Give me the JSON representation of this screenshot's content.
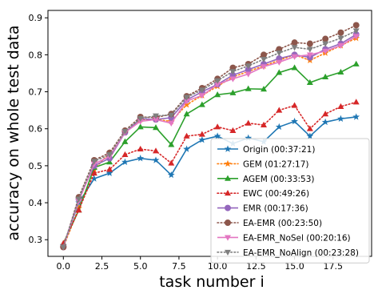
{
  "chart_data": {
    "type": "line",
    "title": "",
    "xlabel": "task number i",
    "ylabel": "accuracy on whole test data",
    "xlim": [
      -1.0,
      20.0
    ],
    "ylim": [
      0.255,
      0.92
    ],
    "xticks": [
      0.0,
      2.5,
      5.0,
      7.5,
      10.0,
      12.5,
      15.0,
      17.5
    ],
    "xtick_labels": [
      "0.0",
      "2.5",
      "5.0",
      "7.5",
      "10.0",
      "12.5",
      "15.0",
      "17.5"
    ],
    "yticks": [
      0.3,
      0.4,
      0.5,
      0.6,
      0.7,
      0.8,
      0.9
    ],
    "ytick_labels": [
      "0.3",
      "0.4",
      "0.5",
      "0.6",
      "0.7",
      "0.8",
      "0.9"
    ],
    "grid": false,
    "legend_position": "lower-right",
    "x": [
      0,
      1,
      2,
      3,
      4,
      5,
      6,
      7,
      8,
      9,
      10,
      11,
      12,
      13,
      14,
      15,
      16,
      17,
      18,
      19
    ],
    "series": [
      {
        "name": "Origin (00:37:21)",
        "color": "#1f77b4",
        "linestyle": "solid",
        "marker": "star",
        "values": [
          0.285,
          0.4,
          0.465,
          0.48,
          0.51,
          0.52,
          0.515,
          0.475,
          0.545,
          0.57,
          0.58,
          0.56,
          0.575,
          0.565,
          0.605,
          0.62,
          0.58,
          0.618,
          0.627,
          0.632
        ]
      },
      {
        "name": "GEM (01:27:17)",
        "color": "#ff7f0e",
        "linestyle": "dotted",
        "marker": "star",
        "values": [
          0.28,
          0.385,
          0.49,
          0.535,
          0.59,
          0.625,
          0.625,
          0.62,
          0.665,
          0.69,
          0.715,
          0.74,
          0.755,
          0.77,
          0.785,
          0.8,
          0.785,
          0.805,
          0.825,
          0.845
        ]
      },
      {
        "name": "AGEM (00:33:53)",
        "color": "#2ca02c",
        "linestyle": "solid",
        "marker": "triangle-up",
        "values": [
          0.29,
          0.38,
          0.495,
          0.51,
          0.565,
          0.605,
          0.603,
          0.557,
          0.64,
          0.665,
          0.692,
          0.697,
          0.708,
          0.707,
          0.752,
          0.765,
          0.725,
          0.74,
          0.753,
          0.775
        ]
      },
      {
        "name": "EWC (00:49:26)",
        "color": "#d62728",
        "linestyle": "dotted",
        "marker": "triangle-up",
        "values": [
          0.29,
          0.38,
          0.48,
          0.49,
          0.53,
          0.545,
          0.54,
          0.507,
          0.58,
          0.585,
          0.605,
          0.595,
          0.615,
          0.61,
          0.65,
          0.663,
          0.6,
          0.64,
          0.66,
          0.672
        ]
      },
      {
        "name": "EMR (00:17:36)",
        "color": "#9467bd",
        "linestyle": "solid",
        "marker": "circle",
        "values": [
          0.28,
          0.41,
          0.5,
          0.52,
          0.59,
          0.627,
          0.625,
          0.63,
          0.678,
          0.7,
          0.72,
          0.745,
          0.76,
          0.775,
          0.79,
          0.8,
          0.793,
          0.815,
          0.83,
          0.855
        ]
      },
      {
        "name": "EA-EMR (00:23:50)",
        "color": "#8c564b",
        "linestyle": "dotted",
        "marker": "circle",
        "values": [
          0.28,
          0.415,
          0.515,
          0.535,
          0.595,
          0.632,
          0.63,
          0.64,
          0.688,
          0.71,
          0.735,
          0.765,
          0.775,
          0.8,
          0.815,
          0.833,
          0.83,
          0.843,
          0.86,
          0.88
        ]
      },
      {
        "name": "EA-EMR_NoSel (00:20:16)",
        "color": "#e377c2",
        "linestyle": "solid",
        "marker": "triangle-down",
        "values": [
          0.28,
          0.405,
          0.505,
          0.525,
          0.59,
          0.62,
          0.625,
          0.615,
          0.675,
          0.69,
          0.72,
          0.735,
          0.748,
          0.768,
          0.78,
          0.795,
          0.8,
          0.81,
          0.825,
          0.85
        ]
      },
      {
        "name": "EA-EMR_NoAlign (00:23:28)",
        "color": "#7f7f7f",
        "linestyle": "dotted",
        "marker": "triangle-down",
        "values": [
          0.28,
          0.41,
          0.512,
          0.53,
          0.593,
          0.628,
          0.635,
          0.637,
          0.685,
          0.705,
          0.73,
          0.755,
          0.77,
          0.788,
          0.805,
          0.82,
          0.815,
          0.83,
          0.845,
          0.865
        ]
      }
    ]
  }
}
